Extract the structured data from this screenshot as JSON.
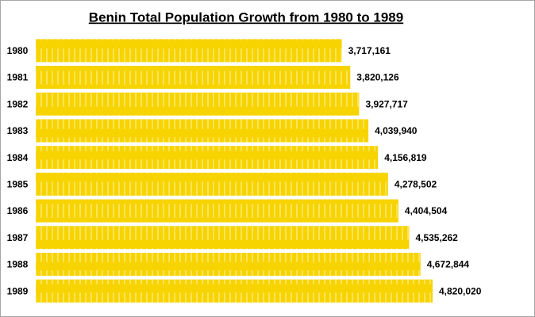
{
  "chart_data": {
    "type": "bar",
    "orientation": "horizontal",
    "title": "Benin Total Population Growth from 1980 to 1989",
    "categories": [
      "1980",
      "1981",
      "1982",
      "1983",
      "1984",
      "1985",
      "1986",
      "1987",
      "1988",
      "1989"
    ],
    "values": [
      3717161,
      3820126,
      3927717,
      4039940,
      4156819,
      4278502,
      4404504,
      4535262,
      4672844,
      4820020
    ],
    "value_labels": [
      "3,717,161",
      "3,820,126",
      "3,927,717",
      "4,039,940",
      "4,156,819",
      "4,278,502",
      "4,404,504",
      "4,535,262",
      "4,672,844",
      "4,820,020"
    ],
    "color": "#f7d300"
  }
}
